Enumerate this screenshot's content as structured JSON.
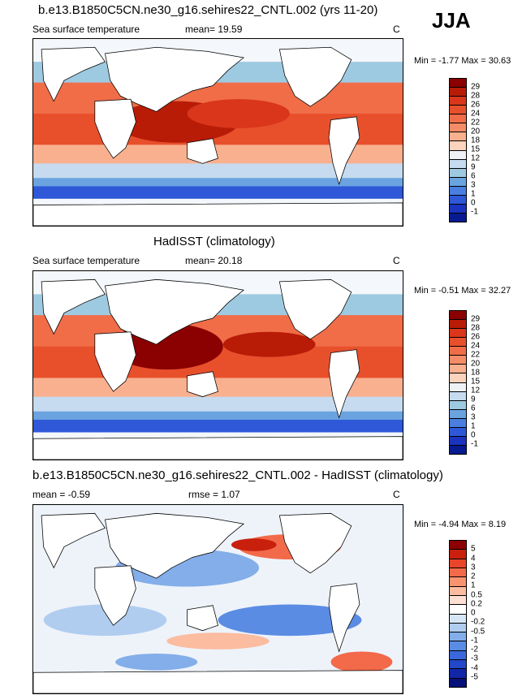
{
  "header": {
    "season": "JJA"
  },
  "panels": [
    {
      "title": "b.e13.B1850C5CN.ne30_g16.sehires22_CNTL.002 (yrs 11-20)",
      "field": "Sea surface temperature",
      "stat1": "mean=  19.59",
      "stat2": "",
      "unit": "C",
      "minmax": "Min = -1.77 Max =  30.63",
      "colorbar": {
        "ticks": [
          "29",
          "28",
          "26",
          "24",
          "22",
          "20",
          "18",
          "15",
          "12",
          "9",
          "6",
          "3",
          "1",
          "0",
          "-1"
        ],
        "colors": [
          "#8b0000",
          "#b81c07",
          "#d9361b",
          "#e8502c",
          "#f06d48",
          "#f58c68",
          "#f9b08f",
          "#fcd3bc",
          "#eef2f7",
          "#c6dbef",
          "#9ecae1",
          "#6aa3e0",
          "#4a7ee0",
          "#2e58d8",
          "#1a34c0",
          "#071a90"
        ]
      }
    },
    {
      "title": "HadISST (climatology)",
      "field": "Sea surface temperature",
      "stat1": "mean=  20.18",
      "stat2": "",
      "unit": "C",
      "minmax": "Min = -0.51 Max =  32.27",
      "colorbar": {
        "ticks": [
          "29",
          "28",
          "26",
          "24",
          "22",
          "20",
          "18",
          "15",
          "12",
          "9",
          "6",
          "3",
          "1",
          "0",
          "-1"
        ],
        "colors": [
          "#8b0000",
          "#b81c07",
          "#d9361b",
          "#e8502c",
          "#f06d48",
          "#f58c68",
          "#f9b08f",
          "#fcd3bc",
          "#eef2f7",
          "#c6dbef",
          "#9ecae1",
          "#6aa3e0",
          "#4a7ee0",
          "#2e58d8",
          "#1a34c0",
          "#071a90"
        ]
      }
    },
    {
      "title": "b.e13.B1850C5CN.ne30_g16.sehires22_CNTL.002 - HadISST (climatology)",
      "field": "",
      "stat1": "mean =  -0.59",
      "stat2": "rmse =  1.07",
      "unit": "C",
      "minmax": "Min = -4.94 Max =  8.19",
      "colorbar": {
        "ticks": [
          "5",
          "4",
          "3",
          "2",
          "1",
          "0.5",
          "0.2",
          "0",
          "-0.2",
          "-0.5",
          "-1",
          "-2",
          "-3",
          "-4",
          "-5"
        ],
        "colors": [
          "#8b0000",
          "#c8200c",
          "#e8452a",
          "#f26a4a",
          "#f7936f",
          "#fbbc9f",
          "#fde0d2",
          "#ffffff",
          "#d6e6f7",
          "#b0cdf0",
          "#83aee9",
          "#5a8ce3",
          "#3a68dc",
          "#2446c8",
          "#1226a8",
          "#06107a"
        ]
      }
    }
  ]
}
